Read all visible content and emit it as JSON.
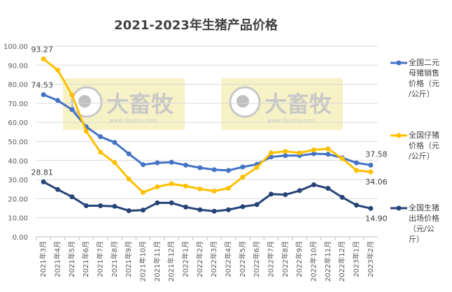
{
  "chart_data": {
    "type": "line",
    "title": "2021-2023年生猪产品价格",
    "categories": [
      "2021年3月",
      "2021年4月",
      "2021年5月",
      "2021年6月",
      "2021年7月",
      "2021年8月",
      "2021年9月",
      "2021年10月",
      "2021年11月",
      "2021年12月",
      "2022年1月",
      "2022年2月",
      "2022年3月",
      "2022年4月",
      "2022年5月",
      "2022年6月",
      "2022年7月",
      "2022年8月",
      "2022年9月",
      "2022年10月",
      "2022年11月",
      "2022年12月",
      "2023年1月",
      "2023年2月"
    ],
    "ylim": [
      0,
      100
    ],
    "yticks": [
      "0.00",
      "10.00",
      "20.00",
      "30.00",
      "40.00",
      "50.00",
      "60.00",
      "70.00",
      "80.00",
      "90.00",
      "100.00"
    ],
    "grid": true,
    "legend": "right",
    "series": [
      {
        "name": "全国二元母猪销售价格（元/公斤）",
        "color": "#4472C4",
        "values": [
          74.53,
          71.5,
          66.7,
          57.7,
          52.5,
          49.5,
          43.5,
          37.8,
          38.8,
          39.1,
          37.6,
          36.2,
          35.2,
          34.8,
          36.6,
          38.0,
          41.9,
          42.6,
          42.6,
          43.6,
          43.3,
          41.4,
          38.8,
          37.58
        ],
        "labels": {
          "0": "74.53",
          "23": "37.58"
        }
      },
      {
        "name": "全国仔猪价格（元/公斤）",
        "color": "#FFC000",
        "values": [
          93.27,
          87.4,
          74.4,
          55.4,
          44.4,
          38.9,
          30.3,
          23.3,
          26.2,
          27.8,
          26.6,
          25.1,
          24.0,
          25.5,
          31.3,
          36.4,
          44.0,
          44.8,
          44.0,
          45.6,
          46.1,
          41.0,
          34.8,
          34.06
        ],
        "labels": {
          "0": "93.27",
          "23": "34.06"
        }
      },
      {
        "name": "全国生猪出场价格（元/公斤）",
        "color": "#264478",
        "values": [
          28.81,
          24.8,
          21.0,
          16.3,
          16.3,
          16.0,
          13.7,
          14.0,
          17.8,
          17.8,
          15.6,
          14.2,
          13.4,
          14.2,
          15.8,
          16.9,
          22.4,
          22.1,
          24.2,
          27.3,
          25.4,
          20.7,
          16.6,
          14.9
        ],
        "labels": {
          "0": "28.81",
          "23": "14.90"
        }
      }
    ],
    "legend_lines": [
      [
        "全国二元",
        "母猪销售",
        "价格（元",
        "/公斤）"
      ],
      [
        "全国仔猪",
        "价格（元",
        "/公斤）"
      ],
      [
        "全国生猪",
        "出场价格",
        "（元/公",
        "斤）"
      ]
    ],
    "watermark": {
      "text": "大畜牧",
      "url": "www.dxumu.com"
    }
  }
}
